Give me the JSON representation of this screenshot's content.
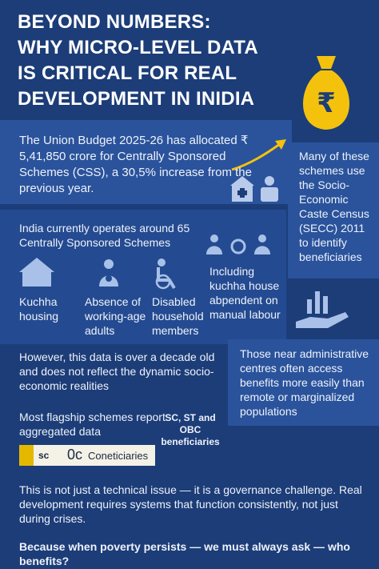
{
  "header": {
    "title_lines": [
      "BEYOND NUMBERS:",
      "WHY MICRO-LEVEL DATA",
      "IS CRITICAL FOR REAL",
      "DEVELOPMENT IN INIDIA"
    ]
  },
  "budget": "The Union Budget 2025-26 has allocated ₹ 5,41,850 crore for Centrally Sponsored Schemes (CSS), a 30,5% increase from the previous year.",
  "secc_note": "Many of these schemes use the Socio-Economic Caste Census (SECC) 2011 to identify beneficiaries",
  "schemes_count": "India currently operates around 65 Centrally Sponsored Schemes",
  "criteria": [
    "Kuchha housing",
    "Absence of working-age adults",
    "Disabled household members",
    "Including kuchha house abpendent on manual labour"
  ],
  "outdated": "However, this data is over a decade old and does not reflect the dynamic socio-economic realities",
  "access": "Those near administrative centres often access benefits more easily than remote or marginalized populations",
  "aggregated": "Most flagship schemes report aggregated data",
  "groups": "SC, ST and OBC beneficiaries",
  "strip": [
    "sc",
    "0c",
    "Coneticiaries"
  ],
  "governance": "This is not just a technical issue — it is a governance challenge. Real development requires systems that function consistently, not just during crises.",
  "closing": "Because when poverty persists — we must always ask — who benefits?"
}
